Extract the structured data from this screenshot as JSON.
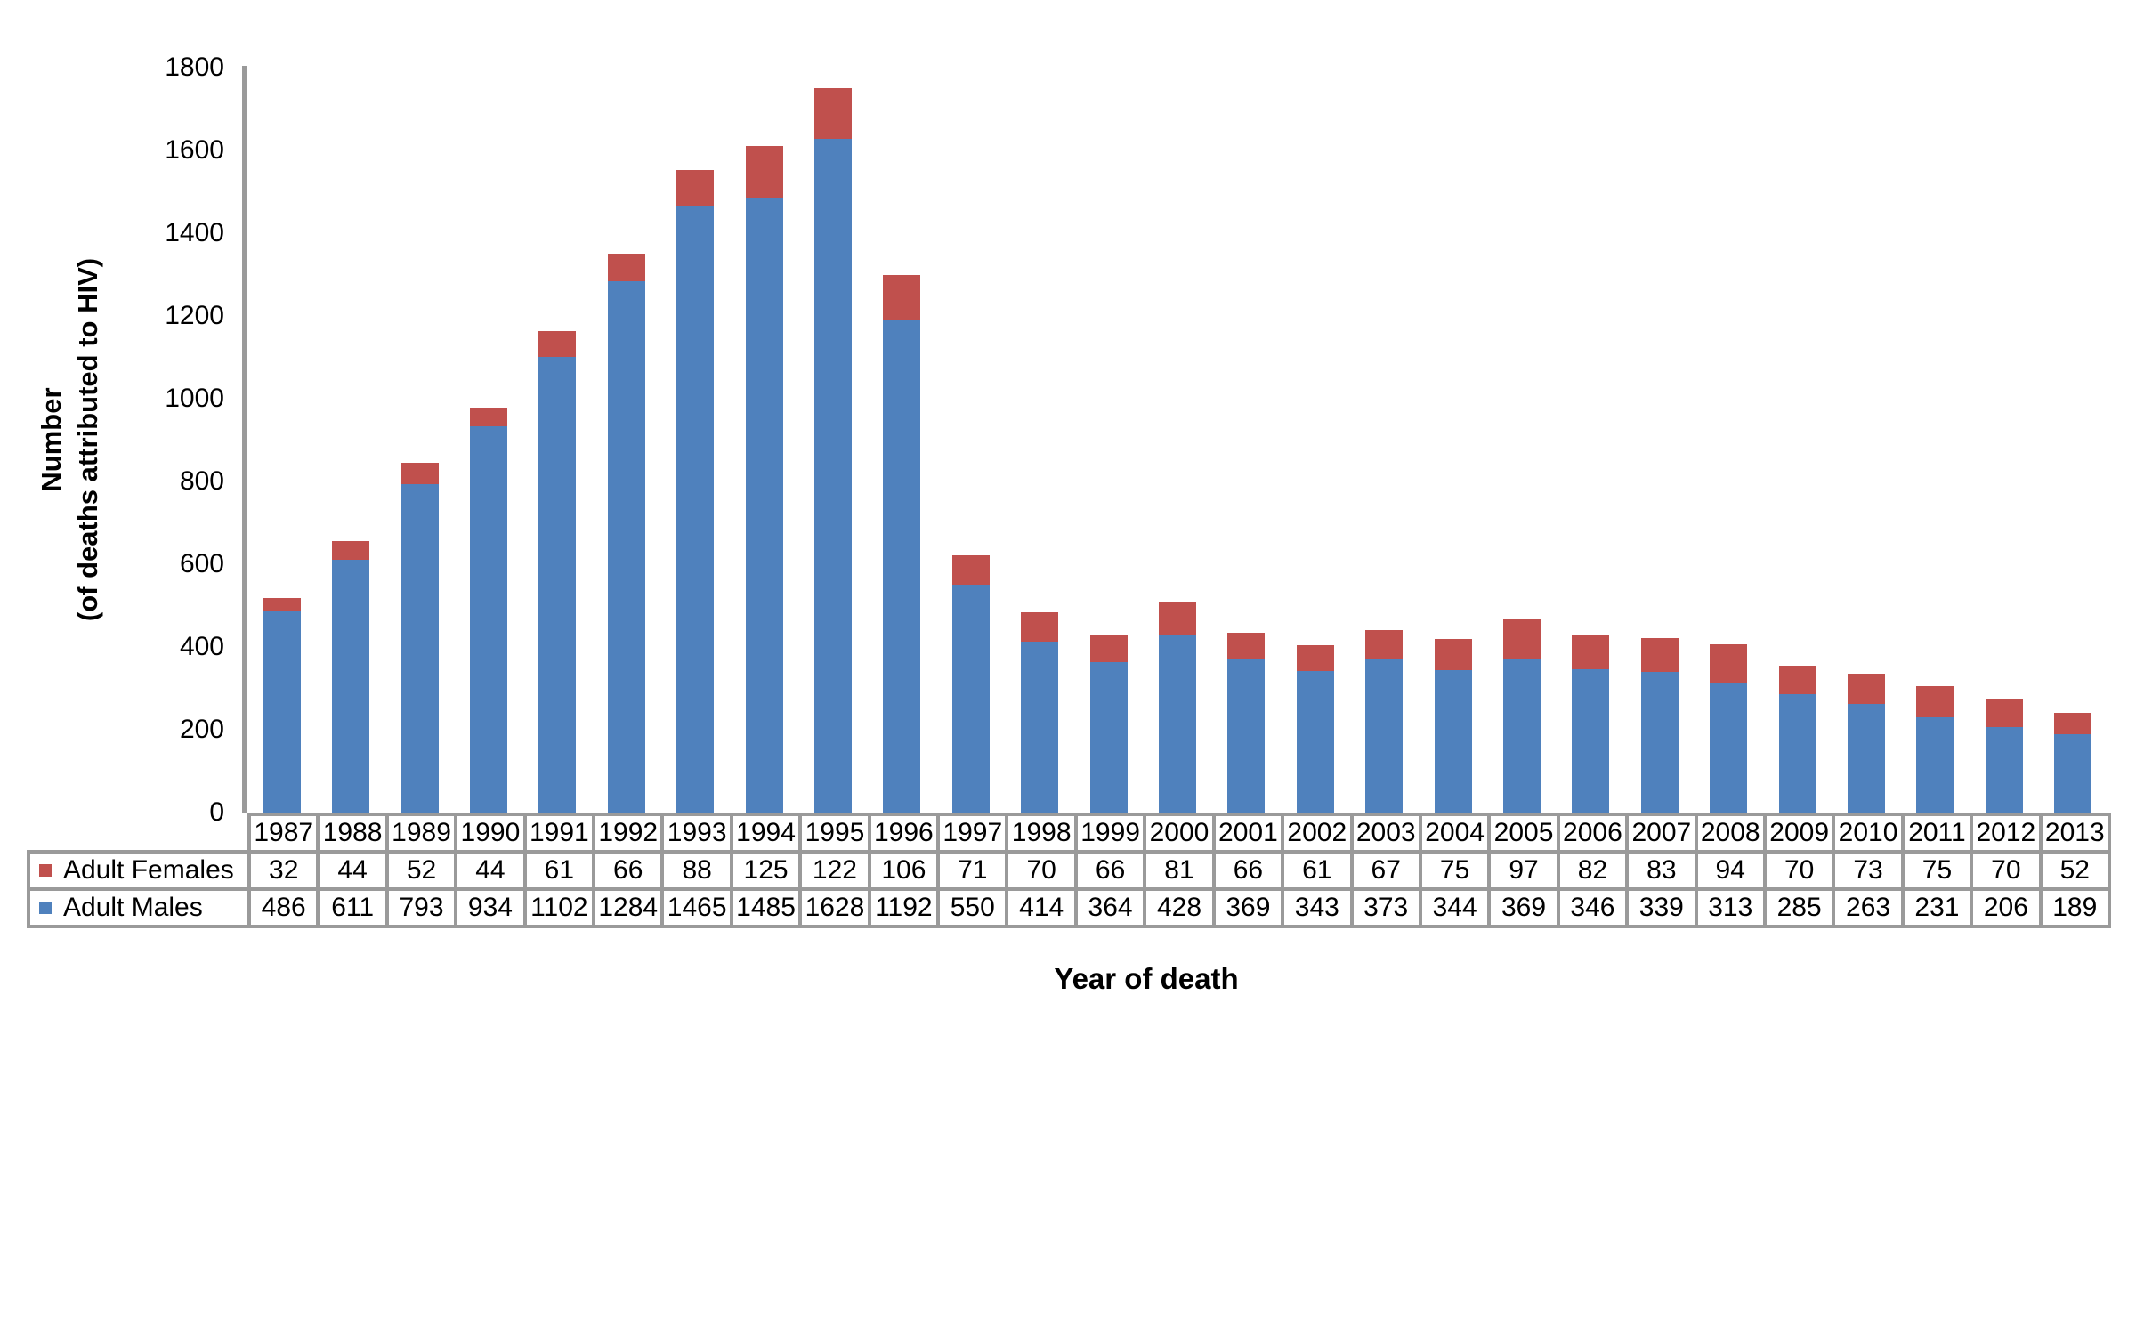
{
  "chart_data": {
    "type": "bar",
    "stacked": true,
    "title": "",
    "xlabel": "Year of death",
    "ylabel_line1": "Number",
    "ylabel_line2": "(of deaths attributed to HIV)",
    "ylim": [
      0,
      1800
    ],
    "ytick_interval": 200,
    "yticks": [
      0,
      200,
      400,
      600,
      800,
      1000,
      1200,
      1400,
      1600,
      1800
    ],
    "grid": false,
    "legend_position": "table-left",
    "categories": [
      "1987",
      "1988",
      "1989",
      "1990",
      "1991",
      "1992",
      "1993",
      "1994",
      "1995",
      "1996",
      "1997",
      "1998",
      "1999",
      "2000",
      "2001",
      "2002",
      "2003",
      "2004",
      "2005",
      "2006",
      "2007",
      "2008",
      "2009",
      "2010",
      "2011",
      "2012",
      "2013"
    ],
    "series": [
      {
        "name": "Adult Females",
        "color": "#C0504D",
        "values": [
          32,
          44,
          52,
          44,
          61,
          66,
          88,
          125,
          122,
          106,
          71,
          70,
          66,
          81,
          66,
          61,
          67,
          75,
          97,
          82,
          83,
          94,
          70,
          73,
          75,
          70,
          52
        ]
      },
      {
        "name": "Adult Males",
        "color": "#4F81BD",
        "values": [
          486,
          611,
          793,
          934,
          1102,
          1284,
          1465,
          1485,
          1628,
          1192,
          550,
          414,
          364,
          428,
          369,
          343,
          373,
          344,
          369,
          346,
          339,
          313,
          285,
          263,
          231,
          206,
          189
        ]
      }
    ],
    "stack_bottom_to_top": [
      "Adult Males",
      "Adult Females"
    ]
  },
  "style": {
    "bar_blue": "#4F81BD",
    "bar_red": "#C0504D",
    "axis_gray": "#9A9A9A",
    "text_color": "#000000",
    "background": "#FFFFFF"
  }
}
